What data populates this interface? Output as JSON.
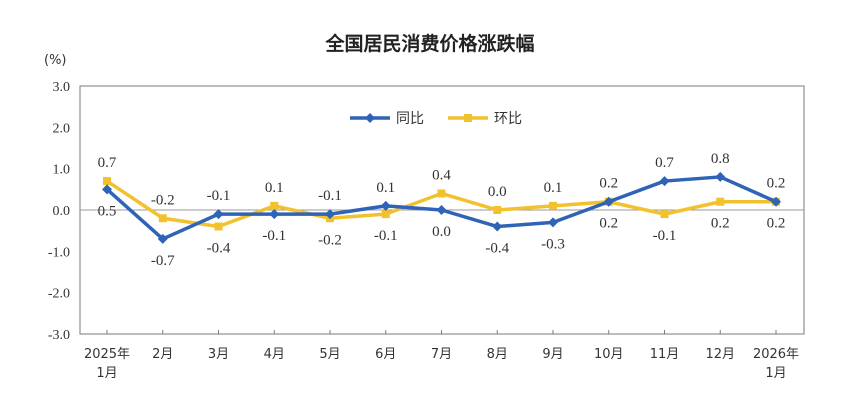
{
  "chart_data": {
    "type": "line",
    "title": "全国居民消费价格涨跌幅",
    "ylabel": "(%)",
    "ylim": [
      -3.0,
      3.0
    ],
    "yticks": [
      "3.0",
      "2.0",
      "1.0",
      "0.0",
      "-1.0",
      "-2.0",
      "-3.0"
    ],
    "categories": [
      [
        "2025年",
        "1月"
      ],
      [
        "2月"
      ],
      [
        "3月"
      ],
      [
        "4月"
      ],
      [
        "5月"
      ],
      [
        "6月"
      ],
      [
        "7月"
      ],
      [
        "8月"
      ],
      [
        "9月"
      ],
      [
        "10月"
      ],
      [
        "11月"
      ],
      [
        "12月"
      ],
      [
        "2026年",
        "1月"
      ]
    ],
    "legend_position": "top-center",
    "series": [
      {
        "name": "同比",
        "color": "#2e63b5",
        "marker": "diamond",
        "values": [
          0.5,
          -0.7,
          -0.1,
          -0.1,
          -0.1,
          0.1,
          0.0,
          -0.4,
          -0.3,
          0.2,
          0.7,
          0.8,
          0.2
        ],
        "labels": [
          "0.5",
          "-0.7",
          "-0.1",
          "-0.1",
          "-0.1",
          "0.1",
          "0.0",
          "-0.4",
          "-0.3",
          "0.2",
          "0.7",
          "0.8",
          "0.2"
        ]
      },
      {
        "name": "环比",
        "color": "#f2c12e",
        "marker": "square",
        "values": [
          0.7,
          -0.2,
          -0.4,
          0.1,
          -0.2,
          -0.1,
          0.4,
          0.0,
          0.1,
          0.2,
          -0.1,
          0.2,
          0.2
        ],
        "labels": [
          "0.7",
          "-0.2",
          "-0.4",
          "0.1",
          "-0.2",
          "-0.1",
          "0.4",
          "0.0",
          "0.1",
          "0.2",
          "-0.1",
          "0.2",
          "0.2"
        ]
      }
    ]
  }
}
